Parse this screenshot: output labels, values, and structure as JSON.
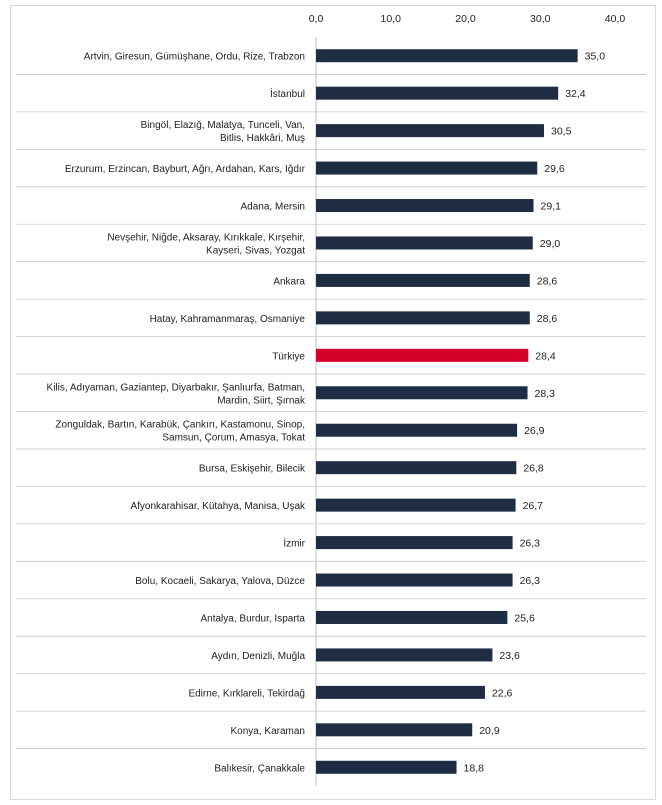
{
  "chart_data": {
    "type": "bar",
    "orientation": "horizontal",
    "xlim": [
      0,
      40
    ],
    "ticks": [
      "0,0",
      "10,0",
      "20,0",
      "30,0",
      "40,0"
    ],
    "tick_values": [
      0,
      10,
      20,
      30,
      40
    ],
    "categories": [
      [
        "Artvin, Giresun, Gümüşhane, Ordu, Rize, Trabzon"
      ],
      [
        "İstanbul"
      ],
      [
        "Bingöl, Elazığ, Malatya, Tunceli, Van,",
        "Bitlis, Hakkâri, Muş"
      ],
      [
        "Erzurum, Erzincan, Bayburt, Ağrı, Ardahan, Kars, Iğdır"
      ],
      [
        "Adana, Mersin"
      ],
      [
        "Nevşehir, Niğde, Aksaray, Kırıkkale, Kırşehir,",
        "Kayseri, Sivas, Yozgat"
      ],
      [
        "Ankara"
      ],
      [
        "Hatay, Kahramanmaraş, Osmaniye"
      ],
      [
        "Türkiye"
      ],
      [
        "Kilis, Adıyaman, Gaziantep, Diyarbakır, Şanlıurfa, Batman,",
        "Mardin, Siirt, Şırnak"
      ],
      [
        "Zonguldak, Bartın, Karabük, Çankırı, Kastamonu, Sinop,",
        "Samsun, Çorum, Amasya, Tokat"
      ],
      [
        "Bursa, Eskişehir, Bilecik"
      ],
      [
        "Afyonkarahisar, Kütahya, Manisa, Uşak"
      ],
      [
        "İzmir"
      ],
      [
        "Bolu, Kocaeli, Sakarya, Yalova, Düzce"
      ],
      [
        "Antalya, Burdur, Isparta"
      ],
      [
        "Aydın, Denizli, Muğla"
      ],
      [
        "Edirne, Kırklareli, Tekirdağ"
      ],
      [
        "Konya, Karaman"
      ],
      [
        "Balıkesir, Çanakkale"
      ]
    ],
    "values": [
      35.0,
      32.4,
      30.5,
      29.6,
      29.1,
      29.0,
      28.6,
      28.6,
      28.4,
      28.3,
      26.9,
      26.8,
      26.7,
      26.3,
      26.3,
      25.6,
      23.6,
      22.6,
      20.9,
      18.8
    ],
    "value_labels": [
      "35,0",
      "32,4",
      "30,5",
      "29,6",
      "29,1",
      "29,0",
      "28,6",
      "28,6",
      "28,4",
      "28,3",
      "26,9",
      "26,8",
      "26,7",
      "26,3",
      "26,3",
      "25,6",
      "23,6",
      "22,6",
      "20,9",
      "18,8"
    ],
    "highlight_index": 8,
    "colors": {
      "bar": "#1f2d42",
      "highlight": "#d4002a",
      "separator": "#c8c8c8"
    },
    "grid": false
  }
}
